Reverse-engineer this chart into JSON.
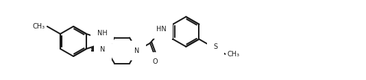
{
  "bg_color": "#ffffff",
  "line_color": "#1a1a1a",
  "line_width": 1.5,
  "figsize": [
    5.34,
    1.18
  ],
  "dpi": 100,
  "xlim": [
    0,
    534
  ],
  "ylim": [
    0,
    118
  ]
}
